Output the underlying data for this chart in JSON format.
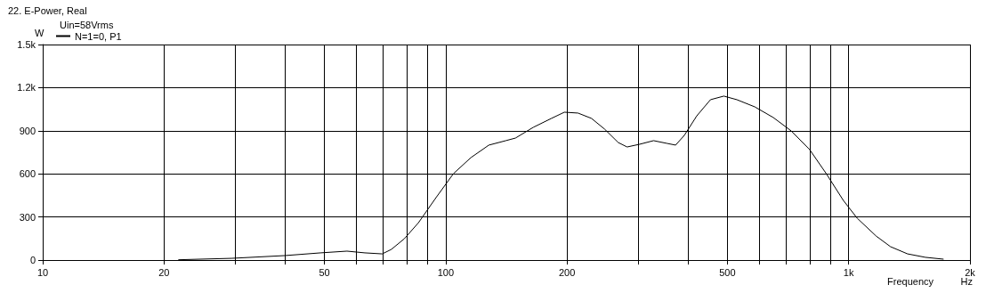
{
  "chart_data": {
    "type": "line",
    "title": "22. E-Power, Real",
    "subtitle": "Uin=58Vrms",
    "xlabel": "Frequency",
    "ylabel": "W",
    "annotations": [
      "Hz"
    ],
    "x": [
      21.7,
      29.4,
      39.9,
      48.9,
      56.9,
      63,
      69.6,
      73.3,
      79,
      85.6,
      94.6,
      104.5,
      115.5,
      128,
      141,
      149,
      165,
      183,
      197,
      213,
      230,
      248,
      268,
      282,
      303,
      328,
      354,
      372,
      391,
      420,
      454,
      490,
      528,
      585,
      650,
      720,
      800,
      880,
      970,
      1050,
      1170,
      1270,
      1400,
      1550,
      1720
    ],
    "series": [
      {
        "name": "N=1=0, P1",
        "color": "#000000",
        "values": [
          2,
          12,
          31,
          50,
          62,
          50,
          43,
          74,
          149,
          260,
          434,
          601,
          713,
          800,
          831,
          849,
          924,
          986,
          1029,
          1023,
          986,
          911,
          818,
          787,
          806,
          831,
          812,
          800,
          868,
          1004,
          1116,
          1141,
          1116,
          1066,
          992,
          899,
          769,
          601,
          415,
          291,
          167,
          93,
          43,
          19,
          6
        ]
      }
    ],
    "log": "x",
    "xlim": [
      10,
      2000
    ],
    "xticks": [
      10,
      {
        "value": 20,
        "label": "20"
      },
      {
        "value": 30,
        "label": null
      },
      {
        "value": 40,
        "label": null
      },
      50,
      {
        "value": 60,
        "label": null
      },
      {
        "value": 70,
        "label": null
      },
      {
        "value": 80,
        "label": null
      },
      {
        "value": 90,
        "label": null
      },
      100,
      200,
      {
        "value": 300,
        "label": null
      },
      {
        "value": 400,
        "label": null
      },
      500,
      {
        "value": 600,
        "label": null
      },
      {
        "value": 700,
        "label": null
      },
      {
        "value": 800,
        "label": null
      },
      {
        "value": 900,
        "label": null
      },
      {
        "value": 1000,
        "label": "1k"
      },
      {
        "value": 2000,
        "label": "2k"
      }
    ],
    "ylim": [
      0,
      1500
    ],
    "yticks": [
      0,
      300,
      600,
      900,
      {
        "value": 1200,
        "label": "1.2k"
      },
      {
        "value": 1500,
        "label": "1.5k"
      }
    ],
    "grid": true,
    "legend": "top left",
    "marker": "none",
    "line_style": "solid"
  }
}
